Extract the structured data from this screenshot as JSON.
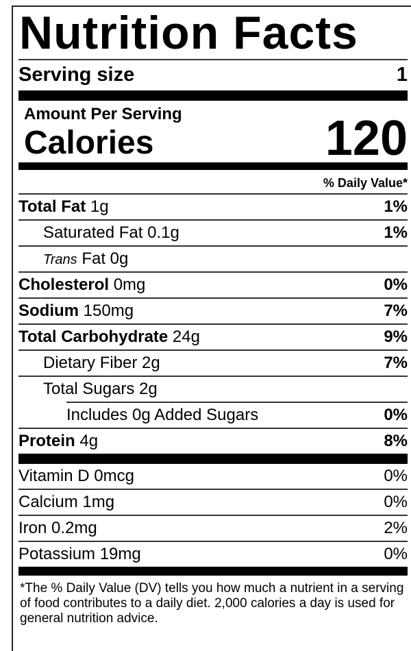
{
  "title": "Nutrition Facts",
  "serving": {
    "label": "Serving size",
    "value": "1"
  },
  "amount_per_serving": "Amount Per Serving",
  "calories": {
    "label": "Calories",
    "value": "120"
  },
  "daily_value_header": "% Daily Value*",
  "nutrients": [
    {
      "name": "Total Fat",
      "amount": "1g",
      "dv": "1%"
    },
    {
      "name": "Saturated Fat",
      "amount": "0.1g",
      "dv": "1%"
    },
    {
      "name": "Trans",
      "name_suffix": "Fat",
      "amount": "0g",
      "dv": ""
    },
    {
      "name": "Cholesterol",
      "amount": "0mg",
      "dv": "0%"
    },
    {
      "name": "Sodium",
      "amount": "150mg",
      "dv": "7%"
    },
    {
      "name": "Total Carbohydrate",
      "amount": "24g",
      "dv": "9%"
    },
    {
      "name": "Dietary Fiber",
      "amount": "2g",
      "dv": "7%"
    },
    {
      "name": "Total Sugars",
      "amount": "2g",
      "dv": ""
    },
    {
      "name": "Includes 0g Added Sugars",
      "amount": "",
      "dv": "0%"
    },
    {
      "name": "Protein",
      "amount": "4g",
      "dv": "8%"
    }
  ],
  "vitamins": [
    {
      "label": "Vitamin D 0mcg",
      "dv": "0%"
    },
    {
      "label": "Calcium 1mg",
      "dv": "0%"
    },
    {
      "label": "Iron 0.2mg",
      "dv": "2%"
    },
    {
      "label": "Potassium 19mg",
      "dv": "0%"
    }
  ],
  "footnote": "*The % Daily Value (DV) tells you how much a nutrient in a serving of food contributes to a daily diet. 2,000 calories a day is used for general nutrition advice."
}
